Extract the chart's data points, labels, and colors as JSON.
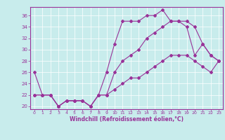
{
  "xlabel": "Windchill (Refroidissement éolien,°C)",
  "bg_color": "#c8ecec",
  "line_color": "#993399",
  "grid_color": "#ffffff",
  "xlim": [
    -0.5,
    23.5
  ],
  "ylim": [
    19.5,
    37.5
  ],
  "xticks": [
    0,
    1,
    2,
    3,
    4,
    5,
    6,
    7,
    8,
    9,
    10,
    11,
    12,
    13,
    14,
    15,
    16,
    17,
    18,
    19,
    20,
    21,
    22,
    23
  ],
  "yticks": [
    20,
    22,
    24,
    26,
    28,
    30,
    32,
    34,
    36
  ],
  "line1_x": [
    0,
    1,
    2,
    3,
    4,
    5,
    6,
    7,
    8,
    9,
    10,
    11,
    12,
    13,
    14,
    15,
    16,
    17,
    18,
    19,
    20,
    21,
    22,
    23
  ],
  "line1_y": [
    26,
    22,
    22,
    20,
    21,
    21,
    21,
    20,
    22,
    26,
    31,
    35,
    35,
    35,
    36,
    36,
    37,
    35,
    35,
    34,
    29,
    31,
    29,
    28
  ],
  "line2_x": [
    0,
    1,
    2,
    3,
    4,
    5,
    6,
    7,
    8,
    9,
    10,
    11,
    12,
    13,
    14,
    15,
    16,
    17,
    18,
    19,
    20,
    21,
    22,
    23
  ],
  "line2_y": [
    22,
    22,
    22,
    20,
    21,
    21,
    21,
    20,
    22,
    22,
    26,
    28,
    29,
    30,
    32,
    33,
    34,
    35,
    35,
    35,
    34,
    31,
    29,
    28
  ],
  "line3_x": [
    0,
    1,
    2,
    3,
    4,
    5,
    6,
    7,
    8,
    9,
    10,
    11,
    12,
    13,
    14,
    15,
    16,
    17,
    18,
    19,
    20,
    21,
    22,
    23
  ],
  "line3_y": [
    22,
    22,
    22,
    20,
    21,
    21,
    21,
    20,
    22,
    22,
    23,
    24,
    25,
    25,
    26,
    27,
    28,
    29,
    29,
    29,
    28,
    27,
    26,
    28
  ]
}
